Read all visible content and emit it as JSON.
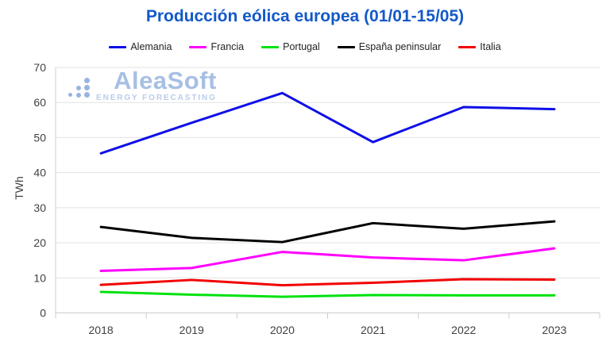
{
  "chart": {
    "title": "Producción eólica europea (01/01-15/05)",
    "title_color": "#1359c9",
    "y_axis_label": "TWh",
    "axis_text_color": "#404040",
    "gridline_color": "#e2e2e2",
    "axis_line_color": "#cccccc",
    "watermark": {
      "name": "AleaSoft",
      "tagline": "ENERGY FORECASTING",
      "name_color": "#a3bce3",
      "tagline_color": "#b7c9ea"
    }
  },
  "chart_data": {
    "type": "line",
    "title": "Producción eólica europea (01/01-15/05)",
    "xlabel": "",
    "ylabel": "TWh",
    "categories": [
      "2018",
      "2019",
      "2020",
      "2021",
      "2022",
      "2023"
    ],
    "ylim": [
      0,
      70
    ],
    "y_ticks": [
      0,
      10,
      20,
      30,
      40,
      50,
      60,
      70
    ],
    "grid": true,
    "legend_position": "top",
    "series": [
      {
        "name": "Alemania",
        "color": "#0f0fe8",
        "values": [
          45.5,
          54.2,
          62.7,
          48.7,
          58.7,
          58.1
        ]
      },
      {
        "name": "Francia",
        "color": "#ff00ff",
        "values": [
          12.0,
          12.8,
          17.4,
          15.8,
          15.0,
          18.4
        ]
      },
      {
        "name": "Portugal",
        "color": "#00e20e",
        "values": [
          6.0,
          5.2,
          4.6,
          5.1,
          5.0,
          5.0
        ]
      },
      {
        "name": "España peninsular",
        "color": "#000000",
        "values": [
          24.5,
          21.4,
          20.2,
          25.6,
          24.0,
          26.1
        ]
      },
      {
        "name": "Italia",
        "color": "#f20202",
        "values": [
          8.0,
          9.4,
          7.9,
          8.6,
          9.6,
          9.5
        ]
      }
    ]
  }
}
